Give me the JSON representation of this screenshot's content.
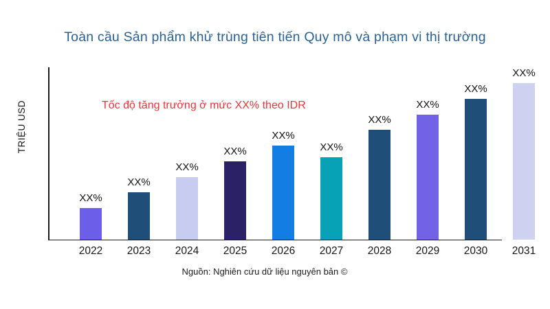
{
  "chart_data": {
    "type": "bar",
    "title": "Toàn cầu Sản phẩm khử trùng tiên tiến Quy mô và phạm vi thị trường",
    "title_color": "#2a6191",
    "ylabel": "TRIỆU USD",
    "xlabel": "",
    "categories": [
      "2022",
      "2023",
      "2024",
      "2025",
      "2026",
      "2027",
      "2028",
      "2029",
      "2030",
      "2031"
    ],
    "value_labels": [
      "XX%",
      "XX%",
      "XX%",
      "XX%",
      "XX%",
      "XX%",
      "XX%",
      "XX%",
      "XX%",
      "XX%"
    ],
    "relative_heights": [
      0.202,
      0.303,
      0.399,
      0.5,
      0.601,
      0.526,
      0.702,
      0.798,
      0.899,
      1.0
    ],
    "bar_colors": [
      "#6c5ee8",
      "#1f4e79",
      "#c8ccf0",
      "#2a2166",
      "#137de3",
      "#07a2b6",
      "#1f4e79",
      "#7162e6",
      "#1f4e79",
      "#ced2f0"
    ],
    "annotation": {
      "text": "Tốc độ tăng trưởng ở mức XX% theo IDR",
      "color": "#e8343a"
    },
    "source": "Nguồn: Nghiên cứu dữ liệu nguyên bản ©",
    "legend": false,
    "grid": false,
    "axis_color": "#1b1b1b",
    "values_note": "Numeric values are masked as XX% in the chart; relative_heights are pixel-estimated proportions of the tallest (2031) bar."
  }
}
